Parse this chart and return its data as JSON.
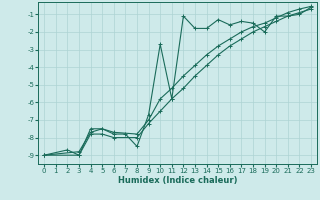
{
  "xlabel": "Humidex (Indice chaleur)",
  "ylabel": "",
  "bg_color": "#ceeaea",
  "grid_color": "#aed4d4",
  "line_color": "#1a6b5a",
  "xlim": [
    -0.5,
    23.5
  ],
  "ylim": [
    -9.5,
    -0.3
  ],
  "yticks": [
    -9,
    -8,
    -7,
    -6,
    -5,
    -4,
    -3,
    -2,
    -1
  ],
  "xticks": [
    0,
    1,
    2,
    3,
    4,
    5,
    6,
    7,
    8,
    9,
    10,
    11,
    12,
    13,
    14,
    15,
    16,
    17,
    18,
    19,
    20,
    21,
    22,
    23
  ],
  "line1_x": [
    0,
    2,
    3,
    4,
    5,
    6,
    7,
    8,
    9,
    10,
    11,
    12,
    13,
    14,
    15,
    16,
    17,
    18,
    19,
    20,
    21,
    22,
    23
  ],
  "line1_y": [
    -9.0,
    -8.7,
    -9.0,
    -7.5,
    -7.5,
    -7.8,
    -7.8,
    -8.5,
    -6.7,
    -2.7,
    -5.8,
    -1.1,
    -1.8,
    -1.8,
    -1.3,
    -1.6,
    -1.4,
    -1.5,
    -2.0,
    -1.1,
    -1.1,
    -1.0,
    -0.6
  ],
  "line2_x": [
    0,
    3,
    4,
    5,
    6,
    8,
    9,
    10,
    11,
    12,
    13,
    14,
    15,
    16,
    17,
    18,
    19,
    20,
    21,
    22,
    23
  ],
  "line2_y": [
    -9.0,
    -8.8,
    -7.7,
    -7.5,
    -7.7,
    -7.8,
    -7.0,
    -5.8,
    -5.2,
    -4.5,
    -3.9,
    -3.3,
    -2.8,
    -2.4,
    -2.0,
    -1.7,
    -1.5,
    -1.2,
    -0.9,
    -0.7,
    -0.55
  ],
  "line3_x": [
    0,
    3,
    4,
    5,
    6,
    8,
    9,
    10,
    11,
    12,
    13,
    14,
    15,
    16,
    17,
    18,
    19,
    20,
    21,
    22,
    23
  ],
  "line3_y": [
    -9.0,
    -9.0,
    -7.8,
    -7.8,
    -8.0,
    -8.0,
    -7.2,
    -6.5,
    -5.8,
    -5.2,
    -4.5,
    -3.9,
    -3.3,
    -2.8,
    -2.4,
    -2.0,
    -1.7,
    -1.4,
    -1.1,
    -0.9,
    -0.7
  ]
}
